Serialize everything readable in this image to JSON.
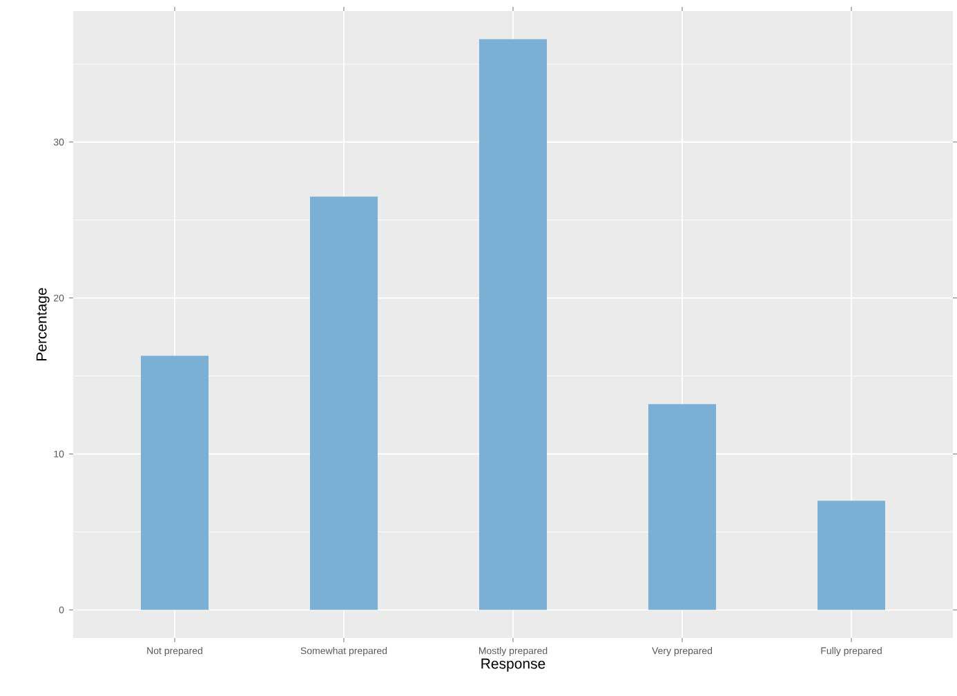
{
  "chart_data": {
    "type": "bar",
    "xlabel": "Response",
    "ylabel": "Percentage",
    "categories": [
      "Not prepared",
      "Somewhat prepared",
      "Mostly prepared",
      "Very prepared",
      "Fully prepared"
    ],
    "values": [
      16.3,
      26.5,
      36.6,
      13.2,
      7.0
    ],
    "color": "#7bafd4",
    "ylim": [
      -1.8,
      38.4
    ],
    "yticks": [
      0,
      10,
      20,
      30
    ],
    "grid": true
  }
}
